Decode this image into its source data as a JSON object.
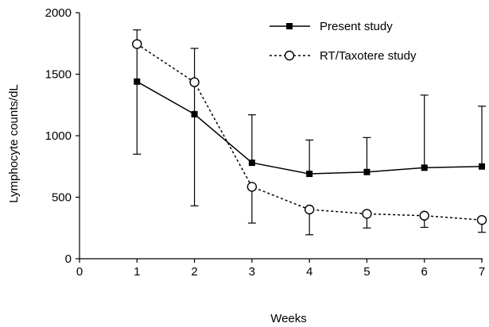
{
  "chart_data": {
    "type": "line",
    "xlabel": "Weeks",
    "ylabel": "Lymphocyte counts/dL",
    "xlim": [
      0,
      7
    ],
    "ylim": [
      0,
      2000
    ],
    "x_ticks": [
      0,
      1,
      2,
      3,
      4,
      5,
      6,
      7
    ],
    "y_ticks": [
      0,
      500,
      1000,
      1500,
      2000
    ],
    "grid": false,
    "legend_position": "top-right",
    "series": [
      {
        "name": "Present study",
        "marker": "filled-square",
        "line_style": "solid",
        "error_bars": "asymmetric",
        "points": [
          {
            "x": 1,
            "y": 1440,
            "low": 850,
            "high": 1860
          },
          {
            "x": 2,
            "y": 1175,
            "low": 430,
            "high": 1710
          },
          {
            "x": 3,
            "y": 780,
            "high": 1170
          },
          {
            "x": 4,
            "y": 690,
            "high": 965
          },
          {
            "x": 5,
            "y": 705,
            "high": 985
          },
          {
            "x": 6,
            "y": 740,
            "high": 1330
          },
          {
            "x": 7,
            "y": 750,
            "high": 1240
          }
        ]
      },
      {
        "name": "RT/Taxotere study",
        "marker": "open-circle",
        "line_style": "dotted",
        "error_bars": "lower",
        "points": [
          {
            "x": 1,
            "y": 1745
          },
          {
            "x": 2,
            "y": 1435
          },
          {
            "x": 3,
            "y": 585,
            "low": 290
          },
          {
            "x": 4,
            "y": 400,
            "low": 195
          },
          {
            "x": 5,
            "y": 365,
            "low": 250
          },
          {
            "x": 6,
            "y": 350,
            "low": 255
          },
          {
            "x": 7,
            "y": 315,
            "low": 215
          }
        ]
      }
    ]
  }
}
